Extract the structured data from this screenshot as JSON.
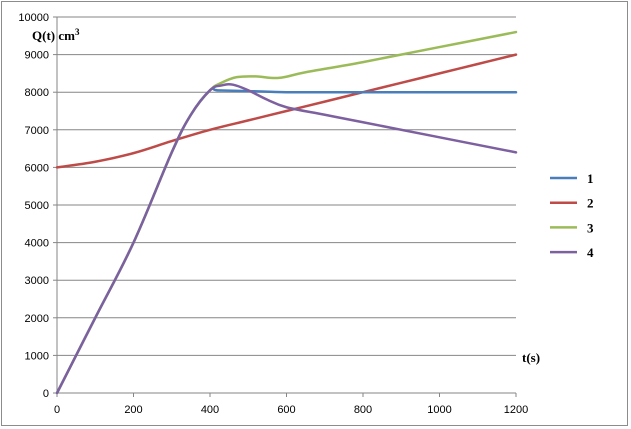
{
  "chart_data": {
    "type": "line",
    "ylabel_main": "Q(t) cm",
    "ylabel_sup": "3",
    "xlabel": "t(s)",
    "xlim": [
      0,
      1200
    ],
    "ylim": [
      0,
      10000
    ],
    "xticks": [
      0,
      200,
      400,
      600,
      800,
      1000,
      1200
    ],
    "yticks": [
      0,
      1000,
      2000,
      3000,
      4000,
      5000,
      6000,
      7000,
      8000,
      9000,
      10000
    ],
    "grid": true,
    "legend_position": "right",
    "series": [
      {
        "name": "1",
        "color": "#4a7ebb",
        "x": [
          0,
          100,
          200,
          300,
          350,
          400,
          420,
          500,
          600,
          700,
          800,
          900,
          1000,
          1100,
          1200
        ],
        "y": [
          0,
          2000,
          4000,
          6400,
          7400,
          8050,
          8050,
          8030,
          8000,
          8000,
          8000,
          8000,
          8000,
          8000,
          8000
        ]
      },
      {
        "name": "2",
        "color": "#be4b48",
        "x": [
          0,
          100,
          200,
          300,
          400,
          500,
          600,
          700,
          800,
          900,
          1000,
          1100,
          1200
        ],
        "y": [
          6000,
          6150,
          6380,
          6700,
          7000,
          7250,
          7500,
          7750,
          8000,
          8250,
          8500,
          8750,
          9000
        ]
      },
      {
        "name": "3",
        "color": "#9bbb59",
        "x": [
          0,
          100,
          200,
          300,
          350,
          400,
          430,
          470,
          520,
          580,
          650,
          800,
          1000,
          1200
        ],
        "y": [
          0,
          2000,
          4000,
          6400,
          7400,
          8050,
          8250,
          8400,
          8420,
          8380,
          8530,
          8800,
          9200,
          9600
        ]
      },
      {
        "name": "4",
        "color": "#7d60a0",
        "x": [
          0,
          100,
          200,
          300,
          350,
          400,
          430,
          460,
          500,
          550,
          600,
          700,
          800,
          1000,
          1200
        ],
        "y": [
          0,
          2000,
          4000,
          6400,
          7400,
          8050,
          8180,
          8200,
          8050,
          7800,
          7600,
          7400,
          7200,
          6800,
          6400
        ]
      }
    ]
  }
}
